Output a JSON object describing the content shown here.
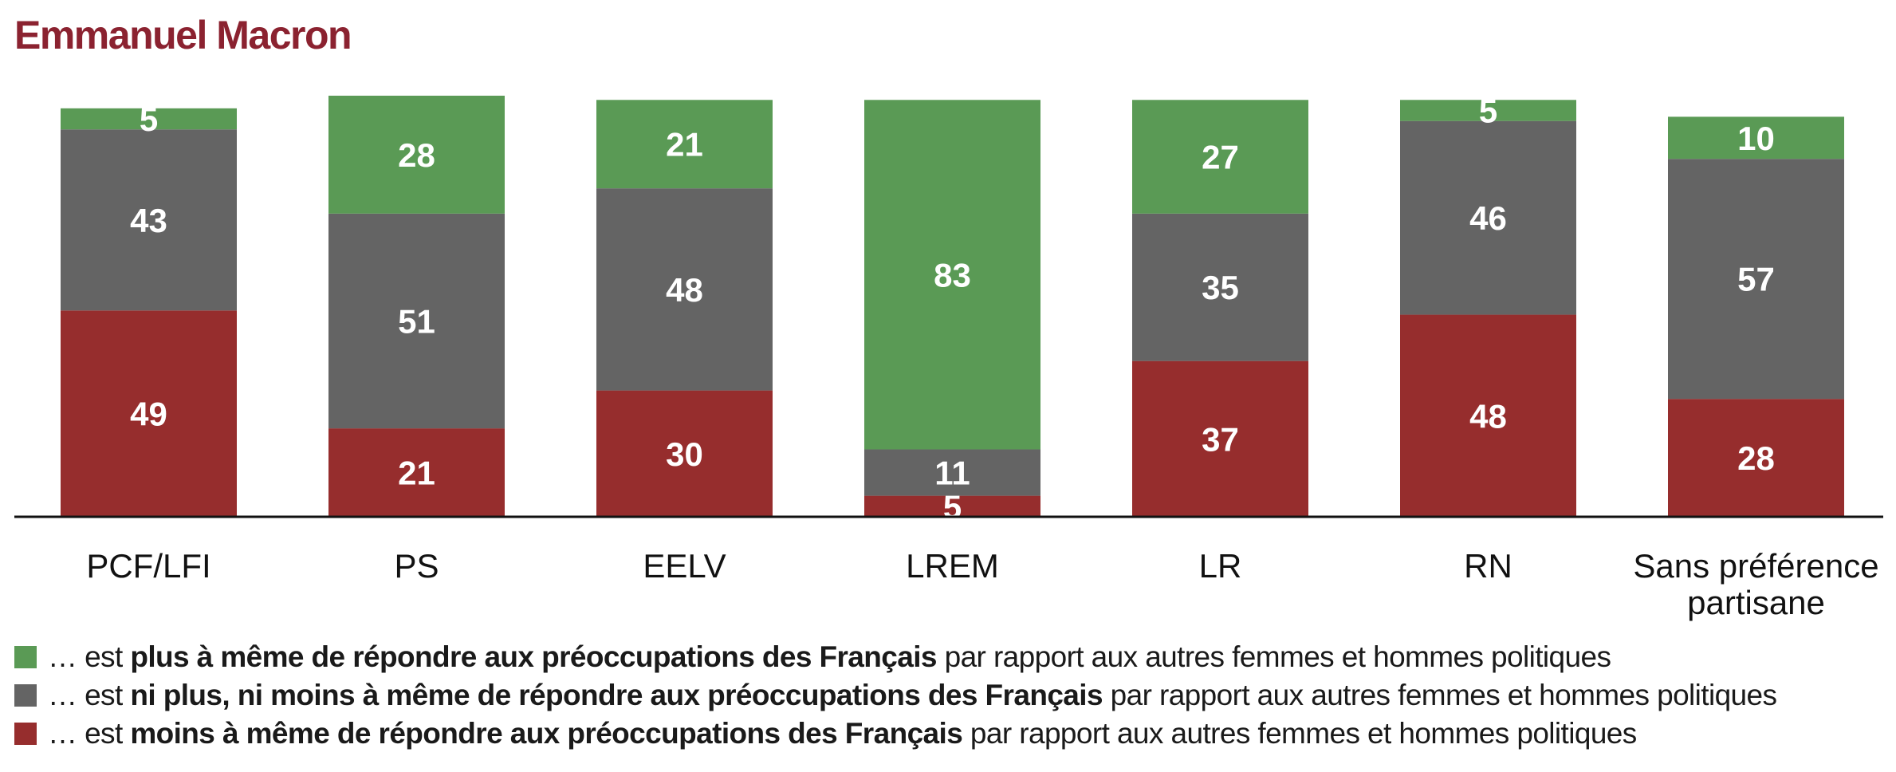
{
  "colors": {
    "title": "#8b2230",
    "green": "#5a9a55",
    "gray": "#646464",
    "red": "#962d2d",
    "axis": "#111111"
  },
  "chart_data": {
    "type": "bar",
    "stacked": true,
    "title": "Emmanuel Macron",
    "categories": [
      "PCF/LFI",
      "PS",
      "EELV",
      "LREM",
      "LR",
      "RN",
      "Sans préférence partisane"
    ],
    "series": [
      {
        "name": "… est plus à même de répondre aux préoccupations des Français par rapport aux autres femmes et hommes politiques",
        "color_key": "green",
        "values": [
          5,
          28,
          21,
          83,
          27,
          5,
          10
        ]
      },
      {
        "name": "… est ni plus, ni moins à même de répondre aux préoccupations des Français par rapport aux autres femmes et hommes politiques",
        "color_key": "gray",
        "values": [
          43,
          51,
          48,
          11,
          35,
          46,
          57
        ]
      },
      {
        "name": "… est moins à même de répondre aux préoccupations des Français par rapport aux autres femmes et hommes politiques",
        "color_key": "red",
        "values": [
          49,
          21,
          30,
          5,
          37,
          48,
          28
        ]
      }
    ],
    "ylim": [
      0,
      100
    ],
    "grid": false,
    "legend_position": "bottom"
  },
  "legend": [
    {
      "color_key": "green",
      "prefix": "… est ",
      "bold": "plus à même de répondre aux préoccupations des Français",
      "suffix": " par rapport aux autres femmes et hommes politiques"
    },
    {
      "color_key": "gray",
      "prefix": "… est ",
      "bold": "ni plus, ni moins à même de répondre aux préoccupations des Français",
      "suffix": " par rapport aux autres femmes et hommes politiques"
    },
    {
      "color_key": "red",
      "prefix": "… est ",
      "bold": "moins à même de répondre aux préoccupations des Français",
      "suffix": " par rapport aux autres femmes et hommes politiques"
    }
  ]
}
